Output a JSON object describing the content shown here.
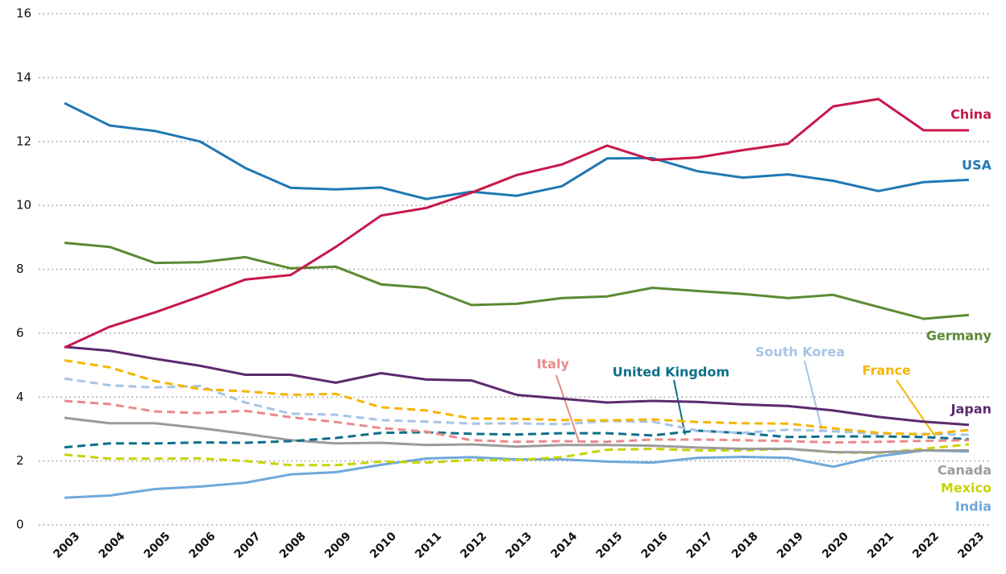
{
  "chart_data": {
    "type": "line",
    "categories": [
      "2003",
      "2004",
      "2005",
      "2006",
      "2007",
      "2008",
      "2009",
      "2010",
      "2011",
      "2012",
      "2013",
      "2014",
      "2015",
      "2016",
      "2017",
      "2018",
      "2019",
      "2020",
      "2021",
      "2022",
      "2023"
    ],
    "ylim": [
      0,
      16
    ],
    "yticks": [
      0,
      2,
      4,
      6,
      8,
      10,
      12,
      14,
      16
    ],
    "grid": true,
    "series": [
      {
        "name": "China",
        "color": "#c8174a",
        "dash": false,
        "values": [
          5.55,
          6.2,
          6.65,
          7.15,
          7.68,
          7.82,
          8.7,
          9.68,
          9.92,
          10.4,
          10.95,
          11.28,
          11.87,
          11.42,
          11.5,
          11.73,
          11.93,
          13.1,
          13.33,
          12.35,
          12.35
        ]
      },
      {
        "name": "USA",
        "color": "#1f78b4",
        "dash": false,
        "values": [
          13.2,
          12.5,
          12.33,
          12.0,
          11.17,
          10.55,
          10.5,
          10.56,
          10.2,
          10.43,
          10.3,
          10.6,
          11.47,
          11.48,
          11.07,
          10.87,
          10.97,
          10.77,
          10.45,
          10.73,
          10.8
        ]
      },
      {
        "name": "Germany",
        "color": "#5b8a33",
        "dash": false,
        "values": [
          8.83,
          8.7,
          8.2,
          8.22,
          8.38,
          8.03,
          8.08,
          7.53,
          7.42,
          6.88,
          6.92,
          7.1,
          7.15,
          7.42,
          7.32,
          7.23,
          7.1,
          7.2,
          6.82,
          6.45,
          6.57
        ]
      },
      {
        "name": "Japan",
        "color": "#5c2a6e",
        "dash": false,
        "values": [
          5.57,
          5.45,
          5.2,
          4.98,
          4.7,
          4.7,
          4.45,
          4.75,
          4.55,
          4.52,
          4.07,
          3.95,
          3.83,
          3.88,
          3.85,
          3.77,
          3.72,
          3.58,
          3.38,
          3.23,
          3.13
        ]
      },
      {
        "name": "France",
        "color": "#f7b500",
        "dash": true,
        "values": [
          5.15,
          4.93,
          4.5,
          4.25,
          4.18,
          4.07,
          4.1,
          3.68,
          3.58,
          3.33,
          3.32,
          3.28,
          3.27,
          3.3,
          3.22,
          3.18,
          3.17,
          3.02,
          2.88,
          2.83,
          2.97
        ]
      },
      {
        "name": "South Korea",
        "color": "#a6c4e6",
        "dash": true,
        "values": [
          4.58,
          4.37,
          4.3,
          4.35,
          3.83,
          3.48,
          3.45,
          3.28,
          3.23,
          3.17,
          3.18,
          3.15,
          3.25,
          3.23,
          2.95,
          2.88,
          2.98,
          2.93,
          2.85,
          2.85,
          2.82
        ]
      },
      {
        "name": "Italy",
        "color": "#e88a8a",
        "dash": true,
        "values": [
          3.88,
          3.78,
          3.55,
          3.5,
          3.57,
          3.37,
          3.22,
          3.03,
          2.92,
          2.65,
          2.6,
          2.62,
          2.6,
          2.67,
          2.67,
          2.65,
          2.62,
          2.58,
          2.6,
          2.63,
          2.65
        ]
      },
      {
        "name": "United Kingdom",
        "color": "#0d6f8a",
        "dash": true,
        "values": [
          2.43,
          2.55,
          2.55,
          2.58,
          2.57,
          2.62,
          2.72,
          2.88,
          2.9,
          2.85,
          2.83,
          2.87,
          2.87,
          2.8,
          2.95,
          2.87,
          2.75,
          2.77,
          2.77,
          2.75,
          2.68
        ]
      },
      {
        "name": "Canada",
        "color": "#9b9b9b",
        "dash": false,
        "values": [
          3.35,
          3.18,
          3.18,
          3.03,
          2.85,
          2.65,
          2.55,
          2.57,
          2.5,
          2.52,
          2.45,
          2.5,
          2.5,
          2.48,
          2.42,
          2.38,
          2.38,
          2.28,
          2.27,
          2.33,
          2.33
        ]
      },
      {
        "name": "Mexico",
        "color": "#c7d300",
        "dash": true,
        "values": [
          2.2,
          2.07,
          2.07,
          2.08,
          2.0,
          1.87,
          1.87,
          1.98,
          1.95,
          2.03,
          2.03,
          2.12,
          2.35,
          2.38,
          2.33,
          2.33,
          2.38,
          2.27,
          2.25,
          2.38,
          2.52
        ]
      },
      {
        "name": "India",
        "color": "#6fa8dc",
        "dash": false,
        "values": [
          0.85,
          0.92,
          1.12,
          1.2,
          1.32,
          1.58,
          1.65,
          1.88,
          2.08,
          2.12,
          2.05,
          2.05,
          1.98,
          1.95,
          2.1,
          2.13,
          2.1,
          1.82,
          2.15,
          2.33,
          2.3
        ]
      }
    ]
  }
}
